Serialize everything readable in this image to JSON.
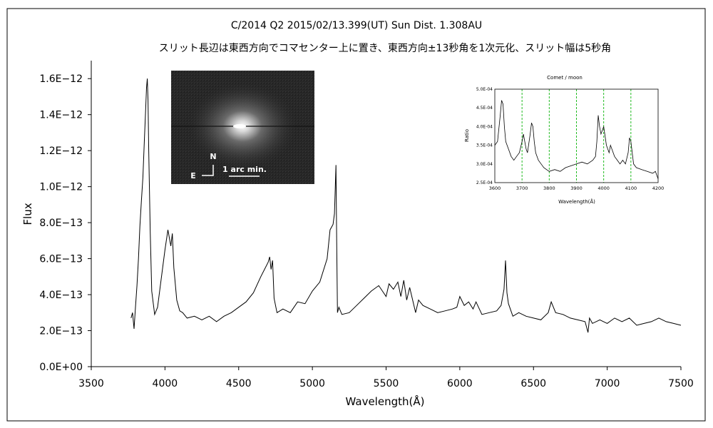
{
  "chart_data": [
    {
      "type": "line",
      "title": "C/2014 Q2     2015/02/13.399(UT)     Sun Dist. 1.308AU",
      "subtitle": "スリット長辺は東西方向でコマセンター上に置き、東西方向±13秒角を1次元化、スリット幅は5秒角",
      "xlabel": "Wavelength(Å)",
      "ylabel": "Flux",
      "xlim": [
        3500,
        7500
      ],
      "ylim": [
        0,
        1.7e-12
      ],
      "x_ticks": [
        3500,
        4000,
        4500,
        5000,
        5500,
        6000,
        6500,
        7000,
        7500
      ],
      "x_tick_labels": [
        "3500",
        "4000",
        "4500",
        "5000",
        "5500",
        "6000",
        "6500",
        "7000",
        "7500"
      ],
      "y_ticks": [
        0,
        2e-13,
        4e-13,
        6e-13,
        8e-13,
        1e-12,
        1.2e-12,
        1.4e-12,
        1.6e-12
      ],
      "y_tick_labels": [
        "0.0E+00",
        "2.0E−13",
        "4.0E−13",
        "6.0E−13",
        "8.0E−13",
        "1.0E−12",
        "1.2E−12",
        "1.4E−12",
        "1.6E−12"
      ],
      "grid": false,
      "legend": "none",
      "series": [
        {
          "color": "#000000",
          "x": [
            3770,
            3780,
            3790,
            3800,
            3810,
            3820,
            3830,
            3840,
            3850,
            3860,
            3870,
            3875,
            3880,
            3885,
            3890,
            3900,
            3910,
            3930,
            3950,
            3970,
            4000,
            4020,
            4040,
            4050,
            4060,
            4080,
            4100,
            4120,
            4150,
            4200,
            4250,
            4300,
            4350,
            4400,
            4450,
            4500,
            4550,
            4600,
            4650,
            4700,
            4710,
            4720,
            4730,
            4740,
            4760,
            4800,
            4850,
            4900,
            4950,
            5000,
            5050,
            5100,
            5120,
            5140,
            5150,
            5160,
            5165,
            5170,
            5180,
            5200,
            5250,
            5300,
            5350,
            5400,
            5450,
            5500,
            5520,
            5550,
            5580,
            5600,
            5620,
            5640,
            5660,
            5700,
            5720,
            5750,
            5800,
            5850,
            5900,
            5950,
            5980,
            6000,
            6030,
            6060,
            6090,
            6110,
            6150,
            6200,
            6250,
            6280,
            6300,
            6310,
            6320,
            6330,
            6360,
            6400,
            6450,
            6500,
            6550,
            6600,
            6620,
            6650,
            6700,
            6750,
            6800,
            6850,
            6870,
            6880,
            6900,
            6950,
            7000,
            7050,
            7100,
            7150,
            7200,
            7250,
            7300,
            7350,
            7400,
            7450,
            7500
          ],
          "y": [
            2.7e-13,
            3e-13,
            2.1e-13,
            3.3e-13,
            4.5e-13,
            6e-13,
            7.8e-13,
            9.2e-13,
            1.05e-12,
            1.25e-12,
            1.45e-12,
            1.55e-12,
            1.6e-12,
            1.48e-12,
            1.2e-12,
            7.5e-13,
            4.2e-13,
            2.9e-13,
            3.3e-13,
            4.6e-13,
            6.5e-13,
            7.6e-13,
            6.7e-13,
            7.4e-13,
            5.5e-13,
            3.7e-13,
            3.1e-13,
            3e-13,
            2.7e-13,
            2.8e-13,
            2.6e-13,
            2.8e-13,
            2.5e-13,
            2.8e-13,
            3e-13,
            3.3e-13,
            3.6e-13,
            4.1e-13,
            5e-13,
            5.8e-13,
            6.1e-13,
            5.4e-13,
            5.9e-13,
            3.8e-13,
            3e-13,
            3.2e-13,
            3e-13,
            3.6e-13,
            3.5e-13,
            4.2e-13,
            4.7e-13,
            6e-13,
            7.6e-13,
            7.9e-13,
            8.5e-13,
            1.12e-12,
            7e-13,
            3e-13,
            3.3e-13,
            2.9e-13,
            3e-13,
            3.4e-13,
            3.8e-13,
            4.2e-13,
            4.5e-13,
            3.9e-13,
            4.6e-13,
            4.3e-13,
            4.7e-13,
            3.9e-13,
            4.8e-13,
            3.7e-13,
            4.4e-13,
            3e-13,
            3.7e-13,
            3.4e-13,
            3.2e-13,
            3e-13,
            3.1e-13,
            3.2e-13,
            3.3e-13,
            3.9e-13,
            3.4e-13,
            3.6e-13,
            3.2e-13,
            3.6e-13,
            2.9e-13,
            3e-13,
            3.1e-13,
            3.4e-13,
            4.3e-13,
            5.9e-13,
            4.1e-13,
            3.5e-13,
            2.8e-13,
            3e-13,
            2.8e-13,
            2.7e-13,
            2.6e-13,
            3e-13,
            3.6e-13,
            3e-13,
            2.9e-13,
            2.7e-13,
            2.6e-13,
            2.5e-13,
            1.9e-13,
            2.7e-13,
            2.4e-13,
            2.6e-13,
            2.4e-13,
            2.7e-13,
            2.5e-13,
            2.7e-13,
            2.3e-13,
            2.4e-13,
            2.5e-13,
            2.7e-13,
            2.5e-13,
            2.4e-13,
            2.3e-13
          ]
        }
      ]
    },
    {
      "type": "line",
      "title": "Comet / moon",
      "xlabel": "Wavelength(Å)",
      "ylabel": "Ratio",
      "xlim": [
        3600,
        4200
      ],
      "ylim": [
        0.00025,
        0.0005
      ],
      "x_tick_labels": [
        "3600",
        "3700",
        "3800",
        "3900",
        "4000",
        "4100",
        "4200"
      ],
      "y_tick_labels": [
        "2.5E-04",
        "3.0E-04",
        "3.5E-04",
        "4.0E-04",
        "4.5E-04",
        "5.0E-04"
      ],
      "reference_lines_x": [
        3700,
        3800,
        3900,
        4000,
        4100
      ],
      "reference_line_color": "#22bb22",
      "grid": false,
      "series": [
        {
          "color": "#000000",
          "x": [
            3600,
            3610,
            3620,
            3625,
            3630,
            3635,
            3640,
            3650,
            3660,
            3670,
            3680,
            3690,
            3700,
            3705,
            3710,
            3715,
            3720,
            3730,
            3735,
            3740,
            3745,
            3750,
            3760,
            3770,
            3780,
            3790,
            3800,
            3820,
            3840,
            3860,
            3880,
            3900,
            3920,
            3940,
            3960,
            3970,
            3975,
            3980,
            3985,
            3990,
            3995,
            4000,
            4010,
            4020,
            4025,
            4030,
            4040,
            4050,
            4060,
            4070,
            4080,
            4090,
            4095,
            4100,
            4105,
            4110,
            4120,
            4140,
            4160,
            4180,
            4190,
            4200
          ],
          "y": [
            0.00035,
            0.00036,
            0.00043,
            0.00047,
            0.00046,
            0.0004,
            0.00036,
            0.00034,
            0.00032,
            0.00031,
            0.00032,
            0.00033,
            0.00036,
            0.00038,
            0.00036,
            0.00034,
            0.00033,
            0.00038,
            0.00041,
            0.0004,
            0.00036,
            0.00033,
            0.00031,
            0.0003,
            0.00029,
            0.000285,
            0.00028,
            0.000285,
            0.00028,
            0.00029,
            0.000295,
            0.0003,
            0.000305,
            0.0003,
            0.00031,
            0.00032,
            0.00036,
            0.00043,
            0.0004,
            0.00038,
            0.00039,
            0.0004,
            0.00035,
            0.00033,
            0.00035,
            0.00034,
            0.00032,
            0.00031,
            0.0003,
            0.00031,
            0.0003,
            0.00033,
            0.00037,
            0.00036,
            0.00033,
            0.0003,
            0.00029,
            0.000285,
            0.00028,
            0.000275,
            0.00028,
            0.00026
          ]
        }
      ]
    }
  ],
  "image_inset": {
    "north_label": "N",
    "east_label": "E",
    "scale_label": "1 arc min."
  }
}
